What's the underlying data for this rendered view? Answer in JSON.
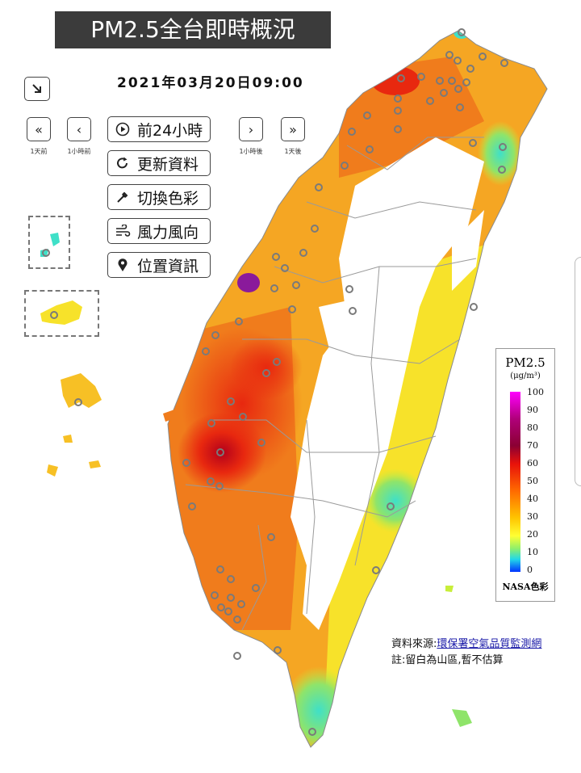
{
  "title": "PM2.5全台即時概況",
  "datetime": "2021年03月20日09:00",
  "nav": {
    "prev_day_label": "1天前",
    "prev_hour_label": "1小時前",
    "next_hour_label": "1小時後",
    "next_day_label": "1天後"
  },
  "menu": {
    "play_label": "前24小時",
    "refresh_label": "更新資料",
    "color_label": "切換色彩",
    "wind_label": "風力風向",
    "location_label": "位置資訊"
  },
  "legend": {
    "title": "PM2.5",
    "unit": "(μg/m³)",
    "ticks": [
      "100",
      "90",
      "80",
      "70",
      "60",
      "50",
      "40",
      "30",
      "20",
      "10",
      "0"
    ],
    "scheme": "NASA色彩"
  },
  "source": {
    "prefix": "資料來源:",
    "link_text": "環保署空氣品質監測網",
    "note": "註:留白為山區,暫不估算"
  },
  "colors": {
    "deep_red": "#b3001b",
    "red": "#e8280f",
    "orange": "#f07c1c",
    "amber": "#f5a623",
    "yellow": "#f7e22a",
    "lime": "#c8ee3a",
    "green": "#8fe46a",
    "cyan": "#3fe0c8",
    "purple": "#8a1a9b",
    "station_ring": "#7a7a7a"
  }
}
